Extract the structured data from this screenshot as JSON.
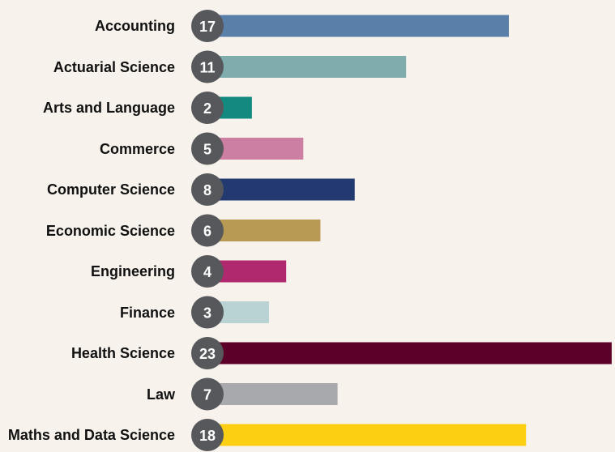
{
  "chart_data": {
    "type": "bar",
    "orientation": "horizontal",
    "categories": [
      "Accounting",
      "Actuarial Science",
      "Arts and Language",
      "Commerce",
      "Computer Science",
      "Economic Science",
      "Engineering",
      "Finance",
      "Health Science",
      "Law",
      "Maths and Data Science"
    ],
    "values": [
      17,
      11,
      2,
      5,
      8,
      6,
      4,
      3,
      23,
      7,
      18
    ],
    "colors": [
      "#5a7fa8",
      "#7fadad",
      "#128a80",
      "#cc7fa3",
      "#223a70",
      "#b89a55",
      "#b0286e",
      "#b9d2d3",
      "#5c0029",
      "#a8a9ad",
      "#fccf12"
    ],
    "xlim": [
      0,
      23.1
    ]
  }
}
